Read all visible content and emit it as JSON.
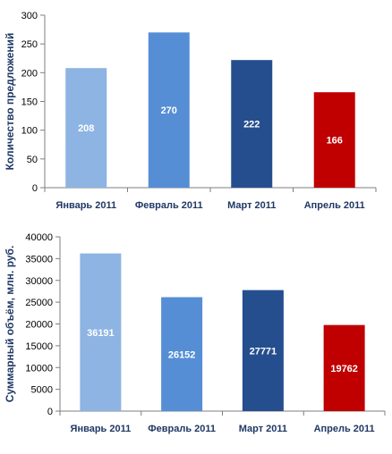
{
  "chart_data": [
    {
      "type": "bar",
      "categories": [
        "Январь 2011",
        "Февраль 2011",
        "Март 2011",
        "Апрель 2011"
      ],
      "values": [
        208,
        270,
        222,
        166
      ],
      "data_labels": [
        "208",
        "270",
        "222",
        "166"
      ],
      "colors": [
        "#8DB4E2",
        "#558ED5",
        "#254E8F",
        "#C00000"
      ],
      "ylabel": "Количество предложений",
      "ylim": [
        0,
        300
      ],
      "yticks": [
        "0",
        "50",
        "100",
        "150",
        "200",
        "250",
        "300"
      ],
      "grid": false,
      "legend": "none"
    },
    {
      "type": "bar",
      "categories": [
        "Январь 2011",
        "Февраль 2011",
        "Март 2011",
        "Апрель 2011"
      ],
      "values": [
        36191,
        26152,
        27771,
        19762
      ],
      "data_labels": [
        "36191",
        "26152",
        "27771",
        "19762"
      ],
      "colors": [
        "#8DB4E2",
        "#558ED5",
        "#254E8F",
        "#C00000"
      ],
      "ylabel": "Суммарный объём, млн. руб.",
      "ylim": [
        0,
        40000
      ],
      "yticks": [
        "0",
        "5000",
        "10000",
        "15000",
        "20000",
        "25000",
        "30000",
        "35000",
        "40000"
      ],
      "grid": false,
      "legend": "none"
    }
  ],
  "colors": {
    "axis": "#7F7F7F",
    "tick_text": "#000000",
    "category_text": "#1F3864",
    "ylabel_text": "#1F3864",
    "data_label_text": "#FFFFFF"
  }
}
